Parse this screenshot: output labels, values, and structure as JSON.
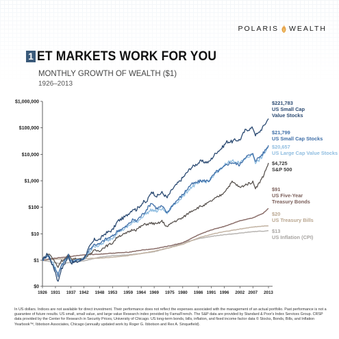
{
  "brand": {
    "name_left": "POLARIS",
    "name_right": "WEALTH"
  },
  "header": {
    "number": "1",
    "title": "ET MARKETS WORK FOR YOU",
    "subtitle": "MONTHLY GROWTH OF WEALTH ($1)",
    "years": "1926–2013"
  },
  "footnote": "In US dollars. Indices are not available for direct investment. Their performance does not reflect the expenses associated with the management of an actual portfolio. Past performance is not a guarantee of future results. US small, small value, and large value Research index provided by Fama/French. The S&P data are provided by Standard & Poor's Index Services Group. CRSP data provided by the Center for Research in Security Prices, University of Chicago. US long-term bonds, bills, inflation, and fixed income factor data © Stocks, Bonds, Bills, and Inflation Yearbook™, Ibbotson Associates, Chicago (annually updated work by Roger G. Ibbotson and Rex A. Sinquefield).",
  "chart_data": {
    "type": "line",
    "y_scale": "log",
    "ylim": [
      0,
      1000000
    ],
    "xlim": [
      1926,
      2013
    ],
    "y_ticks": [
      {
        "value": 0,
        "label": "$0"
      },
      {
        "value": 1,
        "label": "$1"
      },
      {
        "value": 10,
        "label": "$10"
      },
      {
        "value": 100,
        "label": "$100"
      },
      {
        "value": 1000,
        "label": "$1,000"
      },
      {
        "value": 10000,
        "label": "$10,000"
      },
      {
        "value": 100000,
        "label": "$100,000"
      },
      {
        "value": 1000000,
        "label": "$1,000,000"
      }
    ],
    "x_ticks": [
      "1926",
      "1931",
      "1937",
      "1942",
      "1948",
      "1953",
      "1959",
      "1964",
      "1969",
      "1975",
      "1980",
      "1986",
      "1991",
      "1996",
      "2002",
      "2007",
      "2013"
    ],
    "series": [
      {
        "value_label": "$221,783",
        "name_lines": [
          "US Small Cap",
          "Value Stocks"
        ],
        "color": "#2b4a72",
        "points": [
          [
            1926,
            1
          ],
          [
            1928,
            1.8
          ],
          [
            1929,
            1.1
          ],
          [
            1931,
            0.35
          ],
          [
            1932,
            0.15
          ],
          [
            1933,
            0.4
          ],
          [
            1935,
            0.9
          ],
          [
            1936,
            1.4
          ],
          [
            1937,
            0.8
          ],
          [
            1940,
            0.9
          ],
          [
            1942,
            1.2
          ],
          [
            1944,
            3
          ],
          [
            1946,
            6
          ],
          [
            1948,
            6
          ],
          [
            1950,
            10
          ],
          [
            1953,
            14
          ],
          [
            1955,
            30
          ],
          [
            1958,
            45
          ],
          [
            1961,
            90
          ],
          [
            1962,
            80
          ],
          [
            1965,
            160
          ],
          [
            1966,
            150
          ],
          [
            1968,
            400
          ],
          [
            1970,
            260
          ],
          [
            1972,
            360
          ],
          [
            1974,
            230
          ],
          [
            1976,
            480
          ],
          [
            1980,
            1300
          ],
          [
            1983,
            3000
          ],
          [
            1987,
            5500
          ],
          [
            1988,
            5200
          ],
          [
            1990,
            5000
          ],
          [
            1993,
            12000
          ],
          [
            1995,
            17000
          ],
          [
            1997,
            30000
          ],
          [
            1999,
            30000
          ],
          [
            2000,
            34000
          ],
          [
            2002,
            35000
          ],
          [
            2004,
            80000
          ],
          [
            2007,
            100000
          ],
          [
            2008,
            55000
          ],
          [
            2009,
            60000
          ],
          [
            2011,
            110000
          ],
          [
            2013,
            221783
          ]
        ]
      },
      {
        "value_label": "$21,799",
        "name_lines": [
          "US Small Cap Stocks"
        ],
        "color": "#3f6fa8",
        "points": [
          [
            1926,
            1
          ],
          [
            1928,
            1.6
          ],
          [
            1929,
            1.0
          ],
          [
            1931,
            0.45
          ],
          [
            1932,
            0.25
          ],
          [
            1933,
            0.6
          ],
          [
            1935,
            1.1
          ],
          [
            1936,
            1.5
          ],
          [
            1937,
            0.9
          ],
          [
            1940,
            1.0
          ],
          [
            1942,
            1.2
          ],
          [
            1944,
            2.5
          ],
          [
            1946,
            4
          ],
          [
            1948,
            4
          ],
          [
            1950,
            6
          ],
          [
            1953,
            8
          ],
          [
            1955,
            13
          ],
          [
            1958,
            18
          ],
          [
            1961,
            35
          ],
          [
            1962,
            30
          ],
          [
            1965,
            60
          ],
          [
            1968,
            150
          ],
          [
            1970,
            90
          ],
          [
            1972,
            110
          ],
          [
            1974,
            60
          ],
          [
            1976,
            120
          ],
          [
            1980,
            300
          ],
          [
            1983,
            700
          ],
          [
            1987,
            1000
          ],
          [
            1988,
            1000
          ],
          [
            1990,
            1000
          ],
          [
            1993,
            2200
          ],
          [
            1995,
            2800
          ],
          [
            1997,
            4200
          ],
          [
            1999,
            5000
          ],
          [
            2000,
            4500
          ],
          [
            2002,
            4000
          ],
          [
            2004,
            8000
          ],
          [
            2007,
            10000
          ],
          [
            2008,
            6000
          ],
          [
            2009,
            7000
          ],
          [
            2011,
            11000
          ],
          [
            2013,
            21799
          ]
        ]
      },
      {
        "value_label": "$20,657",
        "name_lines": [
          "US Large Cap Value Stocks"
        ],
        "color": "#8fbde0",
        "points": [
          [
            1926,
            1
          ],
          [
            1928,
            1.6
          ],
          [
            1929,
            1.2
          ],
          [
            1931,
            0.5
          ],
          [
            1932,
            0.3
          ],
          [
            1933,
            0.6
          ],
          [
            1935,
            1.0
          ],
          [
            1936,
            1.4
          ],
          [
            1937,
            0.9
          ],
          [
            1940,
            1.0
          ],
          [
            1942,
            1.1
          ],
          [
            1944,
            2
          ],
          [
            1946,
            3.5
          ],
          [
            1948,
            3.5
          ],
          [
            1950,
            5
          ],
          [
            1953,
            7
          ],
          [
            1955,
            12
          ],
          [
            1958,
            16
          ],
          [
            1961,
            28
          ],
          [
            1962,
            26
          ],
          [
            1965,
            50
          ],
          [
            1968,
            80
          ],
          [
            1970,
            70
          ],
          [
            1972,
            90
          ],
          [
            1974,
            60
          ],
          [
            1976,
            110
          ],
          [
            1980,
            250
          ],
          [
            1983,
            550
          ],
          [
            1987,
            900
          ],
          [
            1988,
            900
          ],
          [
            1990,
            1000
          ],
          [
            1993,
            2000
          ],
          [
            1995,
            3000
          ],
          [
            1997,
            5000
          ],
          [
            1999,
            5500
          ],
          [
            2000,
            5700
          ],
          [
            2002,
            4500
          ],
          [
            2004,
            7000
          ],
          [
            2007,
            10000
          ],
          [
            2008,
            5000
          ],
          [
            2009,
            5500
          ],
          [
            2011,
            9000
          ],
          [
            2013,
            20657
          ]
        ]
      },
      {
        "value_label": "$4,725",
        "name_lines": [
          "S&P 500"
        ],
        "color": "#5a5450",
        "points": [
          [
            1926,
            1
          ],
          [
            1928,
            1.7
          ],
          [
            1929,
            1.6
          ],
          [
            1931,
            0.8
          ],
          [
            1932,
            0.55
          ],
          [
            1933,
            0.9
          ],
          [
            1935,
            1.2
          ],
          [
            1936,
            1.6
          ],
          [
            1937,
            1.1
          ],
          [
            1940,
            1.1
          ],
          [
            1942,
            1.2
          ],
          [
            1944,
            1.7
          ],
          [
            1946,
            2.3
          ],
          [
            1948,
            2.3
          ],
          [
            1950,
            3.2
          ],
          [
            1953,
            4.5
          ],
          [
            1955,
            8
          ],
          [
            1958,
            10
          ],
          [
            1961,
            15
          ],
          [
            1962,
            14
          ],
          [
            1965,
            22
          ],
          [
            1968,
            25
          ],
          [
            1970,
            23
          ],
          [
            1972,
            30
          ],
          [
            1974,
            18
          ],
          [
            1976,
            27
          ],
          [
            1980,
            40
          ],
          [
            1983,
            70
          ],
          [
            1987,
            110
          ],
          [
            1988,
            115
          ],
          [
            1990,
            150
          ],
          [
            1993,
            230
          ],
          [
            1995,
            300
          ],
          [
            1997,
            500
          ],
          [
            1999,
            900
          ],
          [
            2000,
            800
          ],
          [
            2002,
            550
          ],
          [
            2004,
            700
          ],
          [
            2007,
            900
          ],
          [
            2008,
            550
          ],
          [
            2009,
            700
          ],
          [
            2011,
            1500
          ],
          [
            2013,
            4725
          ]
        ]
      },
      {
        "value_label": "$91",
        "name_lines": [
          "US Five-Year",
          "Treasury Bonds"
        ],
        "color": "#8a6e6a",
        "points": [
          [
            1926,
            1
          ],
          [
            1931,
            1.2
          ],
          [
            1937,
            1.4
          ],
          [
            1942,
            1.6
          ],
          [
            1948,
            1.7
          ],
          [
            1953,
            1.85
          ],
          [
            1959,
            2.0
          ],
          [
            1964,
            2.4
          ],
          [
            1969,
            2.7
          ],
          [
            1975,
            3.5
          ],
          [
            1980,
            4.6
          ],
          [
            1986,
            9
          ],
          [
            1991,
            14
          ],
          [
            1996,
            19
          ],
          [
            2002,
            31
          ],
          [
            2007,
            40
          ],
          [
            2011,
            60
          ],
          [
            2013,
            91
          ]
        ]
      },
      {
        "value_label": "$20",
        "name_lines": [
          "US Treasury Bills"
        ],
        "color": "#c3b4a4",
        "points": [
          [
            1926,
            1
          ],
          [
            1931,
            1.1
          ],
          [
            1937,
            1.15
          ],
          [
            1942,
            1.16
          ],
          [
            1948,
            1.2
          ],
          [
            1953,
            1.3
          ],
          [
            1959,
            1.5
          ],
          [
            1964,
            1.8
          ],
          [
            1969,
            2.2
          ],
          [
            1975,
            3.0
          ],
          [
            1980,
            4.0
          ],
          [
            1986,
            7.0
          ],
          [
            1991,
            9.5
          ],
          [
            1996,
            12
          ],
          [
            2002,
            15
          ],
          [
            2007,
            18
          ],
          [
            2011,
            19.5
          ],
          [
            2013,
            20
          ]
        ]
      },
      {
        "value_label": "$13",
        "name_lines": [
          "US Inflation (CPI)"
        ],
        "color": "#b8b5b2",
        "points": [
          [
            1926,
            1
          ],
          [
            1931,
            0.8
          ],
          [
            1933,
            0.75
          ],
          [
            1937,
            0.82
          ],
          [
            1942,
            0.95
          ],
          [
            1948,
            1.3
          ],
          [
            1953,
            1.5
          ],
          [
            1959,
            1.6
          ],
          [
            1964,
            1.8
          ],
          [
            1969,
            2.1
          ],
          [
            1975,
            3.0
          ],
          [
            1980,
            4.5
          ],
          [
            1986,
            6.5
          ],
          [
            1991,
            8
          ],
          [
            1996,
            9.2
          ],
          [
            2002,
            10.5
          ],
          [
            2007,
            12
          ],
          [
            2011,
            12.6
          ],
          [
            2013,
            13
          ]
        ]
      }
    ]
  }
}
